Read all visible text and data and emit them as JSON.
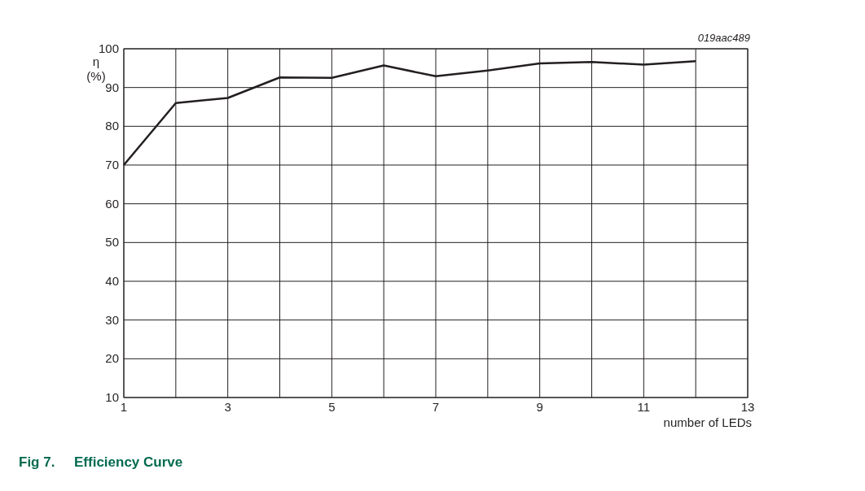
{
  "chart_data": {
    "type": "line",
    "title": "Fig 7.     Efficiency Curve",
    "xlabel": "number of LEDs",
    "ylabel": "η (%)",
    "annotations": [
      "019aac489"
    ],
    "x": [
      1,
      2,
      3,
      4,
      5,
      6,
      7,
      8,
      9,
      10,
      11,
      12
    ],
    "series": [
      {
        "color": "#231f20",
        "values": [
          70,
          86.0,
          87.3,
          92.6,
          92.5,
          95.7,
          92.9,
          94.4,
          96.2,
          96.6,
          95.9,
          96.8
        ]
      }
    ],
    "xlim": [
      1,
      13
    ],
    "xticks": [
      1,
      {
        "value": 2,
        "label": null
      },
      3,
      {
        "value": 4,
        "label": null
      },
      5,
      {
        "value": 6,
        "label": null
      },
      7,
      {
        "value": 8,
        "label": null
      },
      9,
      {
        "value": 10,
        "label": null
      },
      11,
      {
        "value": 12,
        "label": null
      },
      13
    ],
    "ylim": [
      10,
      100
    ],
    "yticks": [
      10,
      20,
      30,
      40,
      50,
      60,
      70,
      80,
      90,
      100
    ],
    "grid": true,
    "marker": "none",
    "line_style": "solid"
  }
}
